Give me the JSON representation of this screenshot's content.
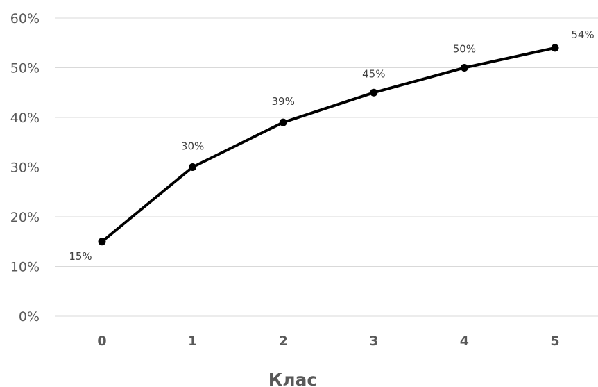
{
  "chart_data": {
    "type": "line",
    "categories": [
      "0",
      "1",
      "2",
      "3",
      "4",
      "5"
    ],
    "series": [
      {
        "values": [
          15,
          30,
          39,
          45,
          50,
          54
        ]
      }
    ],
    "data_labels": [
      "15%",
      "30%",
      "39%",
      "45%",
      "50%",
      "54%"
    ],
    "y_ticks": [
      "0%",
      "10%",
      "20%",
      "30%",
      "40%",
      "50%",
      "60%"
    ],
    "y_tick_values": [
      0,
      10,
      20,
      30,
      40,
      50,
      60
    ],
    "ylim": [
      0,
      60
    ],
    "xlabel": "Клас",
    "ylabel": "",
    "title": "",
    "grid": true,
    "legend": "none",
    "colors": {
      "line": "#000000",
      "grid": "#d9d9d9",
      "text": "#595959"
    }
  }
}
